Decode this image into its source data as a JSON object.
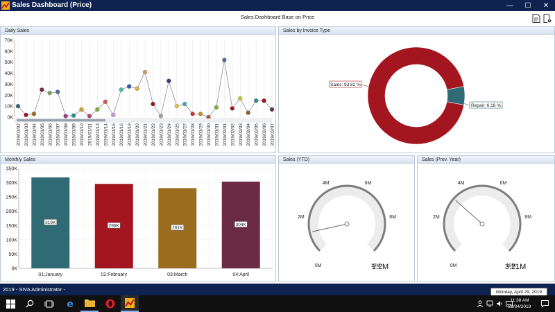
{
  "window": {
    "title": "Sales Dashboard (Price)",
    "min": "—",
    "max": "☐",
    "close": "✕"
  },
  "header": {
    "title": "Sales Dashboard Base on Price"
  },
  "panels": {
    "daily": "Daily Sales",
    "invoice": "Sales by Invoice Type",
    "monthly": "Monthly Sales",
    "ytd": "Sales (YTD)",
    "prev": "Sales (Prev. Year)"
  },
  "colors": {
    "title_bg": "#0f2350",
    "red": "#a4161f",
    "teal": "#2f6a75",
    "brown": "#9b6b1e",
    "plum": "#6b2b45"
  },
  "daily_chart": {
    "type": "line",
    "yticks": [
      "70K",
      "60K",
      "50K",
      "40K",
      "30K",
      "20K",
      "10K",
      "0K"
    ],
    "ymax": 70000,
    "x": [
      "2019/01/02",
      "2019/01/03",
      "2019/01/04",
      "2019/01/05",
      "2019/01/06",
      "2019/01/07",
      "2019/01/08",
      "2019/01/09",
      "2019/01/10",
      "2019/01/11",
      "2019/01/13",
      "2019/01/14",
      "2019/01/15",
      "2019/01/16",
      "2019/01/19",
      "2019/01/20",
      "2019/01/21",
      "2019/01/22",
      "2019/01/23",
      "2019/01/24",
      "2019/01/25",
      "2019/01/27",
      "2019/01/28",
      "2019/01/29",
      "2019/01/30",
      "2019/01/31",
      "2019/02/01",
      "2019/02/02",
      "2019/02/03",
      "2019/02/04",
      "2019/02/05",
      "2019/02/06",
      "2019/02/07"
    ],
    "values": [
      10000,
      2000,
      3000,
      25000,
      22000,
      23000,
      1000,
      1500,
      7000,
      1000,
      7000,
      14000,
      2000,
      25000,
      28000,
      26000,
      41000,
      12000,
      1000,
      33000,
      10000,
      12000,
      3000,
      3000,
      0,
      9000,
      52000,
      8000,
      17000,
      4000,
      15000,
      15000,
      7000
    ],
    "colors": [
      "#2f6a75",
      "#a4161f",
      "#9b6b1e",
      "#6b2b45",
      "#7aa35a",
      "#4f6d99",
      "#9c3b88",
      "#2e8e8c",
      "#c8a03d",
      "#b0457f",
      "#7ab042",
      "#d05a5a",
      "#b89ad1",
      "#4fb6a8",
      "#3c58a6",
      "#e0b13a",
      "#c9a060",
      "#a4161f",
      "#a59fa4",
      "#3c3a7e",
      "#e3c341",
      "#4fa8b1",
      "#c8343f",
      "#c98b2f",
      "#a35a3c",
      "#7ab042",
      "#4f6d99",
      "#a4161f",
      "#c8c63c",
      "#8d5f2e",
      "#2e8e8c",
      "#a4161f",
      "#6b2b45"
    ]
  },
  "invoice_chart": {
    "type": "pie",
    "slices": [
      {
        "label": "Sales: 93.82 %",
        "value": 93.82,
        "color": "#a4161f"
      },
      {
        "label": "Repair: 6.18 %",
        "value": 6.18,
        "color": "#2f6a75"
      }
    ]
  },
  "monthly_chart": {
    "type": "bar",
    "yticks": [
      "350K",
      "300K",
      "250K",
      "200K",
      "150K",
      "100K",
      "50K",
      "0K"
    ],
    "ymax": 350000,
    "categories": [
      "01:January",
      "02:February",
      "03:March",
      "04:April"
    ],
    "values": [
      319000,
      296000,
      281000,
      304000
    ],
    "labels": [
      "319K",
      "296K",
      "281K",
      "304K"
    ],
    "colors": [
      "#2f6a75",
      "#a4161f",
      "#9b6b1e",
      "#6b2b45"
    ]
  },
  "ytd_gauge": {
    "ticks": [
      "0M",
      "2M",
      "4M",
      "6M",
      "8M",
      "10M"
    ],
    "value": 1.2,
    "max": 10,
    "value_label": "1.2M"
  },
  "prev_gauge": {
    "ticks": [
      "0M",
      "2M",
      "4M",
      "6M",
      "8M",
      "10M"
    ],
    "value": 3.21,
    "max": 10,
    "value_label": "3.21M"
  },
  "status": {
    "text": "2019 - SIVA Administrator -",
    "tooltip": "Monday, April 29, 2019"
  },
  "clock": {
    "time": "11:38 AM",
    "date": "29/04/2019"
  }
}
